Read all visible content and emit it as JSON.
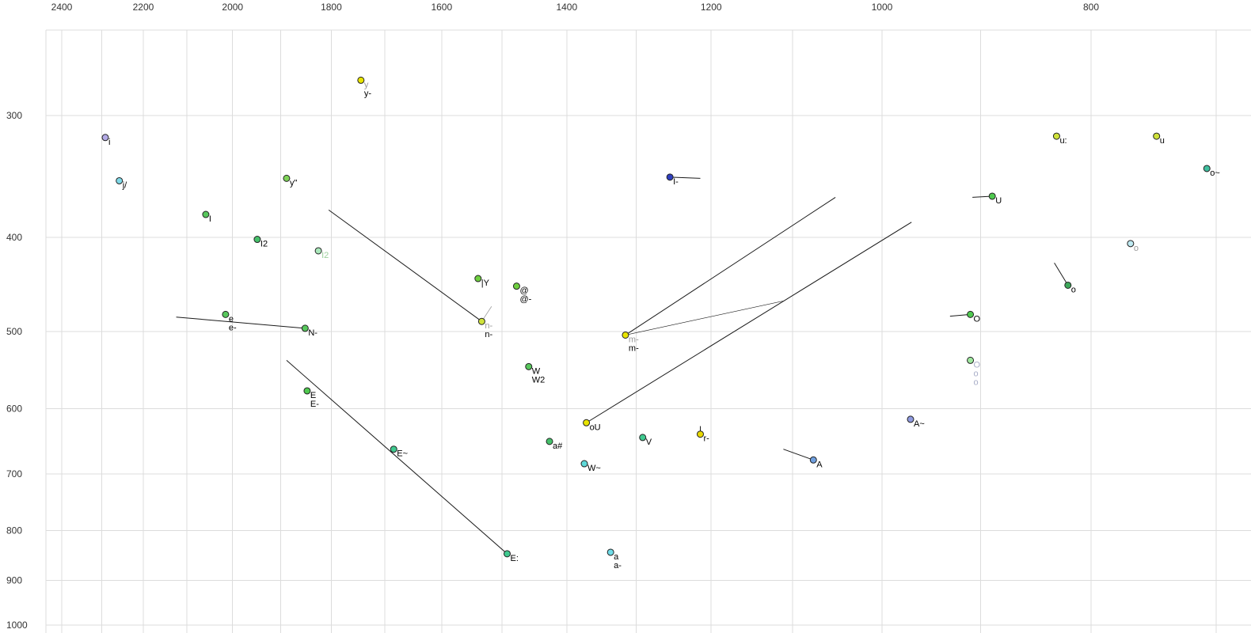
{
  "chart_data": {
    "type": "scatter",
    "title": "",
    "xlabel": "",
    "ylabel": "",
    "x_axis": {
      "scale": "log",
      "reversed": true,
      "range": [
        2560,
        670
      ],
      "tick_labels": [
        "2400",
        "2200",
        "2000",
        "1800",
        "1600",
        "1400",
        "1200",
        "1000",
        "800"
      ]
    },
    "y_axis": {
      "scale": "log",
      "reversed": true,
      "range": [
        250,
        1010
      ],
      "tick_labels": [
        "300",
        "400",
        "500",
        "600",
        "700",
        "800",
        "900",
        "1000"
      ]
    },
    "grid": true,
    "legend": false,
    "points": [
      {
        "id": "i",
        "f2": 2291,
        "f1": 316,
        "color": "#b3aae6",
        "labels": [
          {
            "text": "i"
          }
        ]
      },
      {
        "id": "j-slash",
        "f2": 2257,
        "f1": 350,
        "color": "#7fd9e8",
        "labels": [
          {
            "text": "j/"
          }
        ]
      },
      {
        "id": "I",
        "f2": 2058,
        "f1": 379,
        "color": "#57c75c",
        "labels": [
          {
            "text": "I"
          }
        ]
      },
      {
        "id": "I2",
        "f2": 1948,
        "f1": 402,
        "color": "#45c06a",
        "labels": [
          {
            "text": "I2"
          }
        ]
      },
      {
        "id": "I2-muted",
        "f2": 1825,
        "f1": 413,
        "color": "#aae8bb",
        "labels": [
          {
            "text": "I2",
            "muted": true,
            "color": "#9ccf9c"
          }
        ]
      },
      {
        "id": "y-umlaut",
        "f2": 1888,
        "f1": 348,
        "color": "#7ed357",
        "labels": [
          {
            "text": "y\""
          }
        ]
      },
      {
        "id": "y",
        "f2": 1744,
        "f1": 276,
        "color": "#e8e400",
        "labels": [
          {
            "text": "y",
            "muted": true
          },
          {
            "text": "y-"
          }
        ]
      },
      {
        "id": "bar-Y",
        "f2": 1539,
        "f1": 441,
        "color": "#6ecf3f",
        "labels": [
          {
            "text": "|Y"
          }
        ]
      },
      {
        "id": "at",
        "f2": 1477,
        "f1": 449,
        "color": "#6ecf3f",
        "labels": [
          {
            "text": "@"
          },
          {
            "text": "@-"
          }
        ]
      },
      {
        "id": "n-",
        "f2": 1533,
        "f1": 488,
        "color": "#cfe23a",
        "labels": [
          {
            "text": "n-",
            "muted": true
          },
          {
            "text": "n-"
          }
        ]
      },
      {
        "id": "e",
        "f2": 2015,
        "f1": 480,
        "color": "#57c75c",
        "labels": [
          {
            "text": "e"
          },
          {
            "text": "e-"
          }
        ]
      },
      {
        "id": "N-",
        "f2": 1851,
        "f1": 496,
        "color": "#57c75c",
        "labels": [
          {
            "text": "N-"
          }
        ]
      },
      {
        "id": "E",
        "f2": 1847,
        "f1": 575,
        "color": "#4fc94f",
        "labels": [
          {
            "text": "E"
          },
          {
            "text": "E-"
          }
        ]
      },
      {
        "id": "E-tilde",
        "f2": 1684,
        "f1": 660,
        "color": "#3fc98f",
        "labels": [
          {
            "text": "E~"
          }
        ]
      },
      {
        "id": "E-colon",
        "f2": 1492,
        "f1": 845,
        "color": "#3fc98f",
        "labels": [
          {
            "text": "E:"
          }
        ]
      },
      {
        "id": "W",
        "f2": 1458,
        "f1": 543,
        "color": "#57c75c",
        "labels": [
          {
            "text": "W"
          },
          {
            "text": "W2"
          }
        ]
      },
      {
        "id": "a-hash",
        "f2": 1426,
        "f1": 648,
        "color": "#45c06a",
        "labels": [
          {
            "text": "a#"
          }
        ]
      },
      {
        "id": "W-tilde",
        "f2": 1374,
        "f1": 683,
        "color": "#5fd9d9",
        "labels": [
          {
            "text": "W~"
          }
        ]
      },
      {
        "id": "oU",
        "f2": 1371,
        "f1": 620,
        "color": "#e8e400",
        "labels": [
          {
            "text": "oU"
          }
        ]
      },
      {
        "id": "V",
        "f2": 1291,
        "f1": 642,
        "color": "#3fc98f",
        "labels": [
          {
            "text": "V"
          }
        ]
      },
      {
        "id": "r-",
        "f2": 1214,
        "f1": 637,
        "color": "#e8d800",
        "labels": [
          {
            "text": "r-"
          }
        ]
      },
      {
        "id": "m-",
        "f2": 1315,
        "f1": 504,
        "color": "#e8e400",
        "labels": [
          {
            "text": "m-",
            "muted": true
          },
          {
            "text": "m-"
          }
        ]
      },
      {
        "id": "I-",
        "f2": 1254,
        "f1": 347,
        "color": "#2f3fbf",
        "labels": [
          {
            "text": "I-"
          }
        ]
      },
      {
        "id": "a",
        "f2": 1336,
        "f1": 842,
        "color": "#6fdce8",
        "labels": [
          {
            "text": "a"
          },
          {
            "text": "a-"
          }
        ]
      },
      {
        "id": "A-tilde",
        "f2": 970,
        "f1": 615,
        "color": "#8f9ae0",
        "labels": [
          {
            "text": "A~"
          }
        ]
      },
      {
        "id": "A",
        "f2": 1076,
        "f1": 677,
        "color": "#6f9fdf",
        "labels": [
          {
            "text": "A"
          }
        ]
      },
      {
        "id": "u-colon",
        "f2": 830,
        "f1": 315,
        "color": "#cfe23a",
        "labels": [
          {
            "text": "u:"
          }
        ]
      },
      {
        "id": "u",
        "f2": 746,
        "f1": 315,
        "color": "#cfe23a",
        "labels": [
          {
            "text": "u"
          }
        ]
      },
      {
        "id": "o-tilde",
        "f2": 707,
        "f1": 340,
        "color": "#3fbf9f",
        "labels": [
          {
            "text": "o~"
          }
        ]
      },
      {
        "id": "U",
        "f2": 889,
        "f1": 363,
        "color": "#4fc94f",
        "labels": [
          {
            "text": "U"
          }
        ]
      },
      {
        "id": "o-muted",
        "f2": 767,
        "f1": 406,
        "color": "#bfeaf2",
        "labels": [
          {
            "text": "o",
            "muted": true
          }
        ]
      },
      {
        "id": "o",
        "f2": 820,
        "f1": 448,
        "color": "#3da75a",
        "labels": [
          {
            "text": "o"
          }
        ]
      },
      {
        "id": "O",
        "f2": 910,
        "f1": 480,
        "color": "#4fc94f",
        "labels": [
          {
            "text": "O"
          }
        ]
      },
      {
        "id": "O-muted",
        "f2": 910,
        "f1": 535,
        "color": "#9fe89f",
        "labels": [
          {
            "text": "O",
            "muted": true,
            "color": "#a9aec8"
          },
          {
            "text": "o",
            "muted": true,
            "color": "#a9aec8"
          },
          {
            "text": "o",
            "muted": true,
            "color": "#a9aec8"
          }
        ]
      }
    ],
    "lines": [
      {
        "from": [
          1805,
          375
        ],
        "to": [
          1533,
          488
        ],
        "width": 1
      },
      {
        "from": [
          2124,
          483
        ],
        "to": [
          1851,
          496
        ],
        "width": 1
      },
      {
        "from": [
          1888,
          535
        ],
        "to": [
          1492,
          845
        ],
        "width": 1
      },
      {
        "from": [
          1371,
          620
        ],
        "to": [
          969,
          386
        ],
        "width": 1
      },
      {
        "from": [
          1315,
          504
        ],
        "to": [
          1051,
          364
        ],
        "width": 1
      },
      {
        "from": [
          1315,
          504
        ],
        "to": [
          1111,
          465
        ],
        "width": 0.6
      },
      {
        "from": [
          1533,
          488
        ],
        "to": [
          1517,
          471
        ],
        "width": 0.75,
        "color": "#999999"
      },
      {
        "from": [
          1254,
          347
        ],
        "to": [
          1214,
          348
        ],
        "width": 1
      },
      {
        "from": [
          908,
          364
        ],
        "to": [
          889,
          363
        ],
        "width": 1
      },
      {
        "from": [
          930,
          482
        ],
        "to": [
          910,
          480
        ],
        "width": 1
      },
      {
        "from": [
          832,
          425
        ],
        "to": [
          820,
          448
        ],
        "width": 1
      },
      {
        "from": [
          1111,
          660
        ],
        "to": [
          1076,
          677
        ],
        "width": 1
      },
      {
        "from": [
          1214,
          625
        ],
        "to": [
          1214,
          637
        ],
        "width": 1
      }
    ],
    "colors": {
      "grid": "#dcdcdc",
      "line": "#1a1a1a",
      "point_stroke": "#222222",
      "tick_text": "#333333",
      "label_text": "#000000",
      "muted_label_text": "#999999"
    }
  }
}
